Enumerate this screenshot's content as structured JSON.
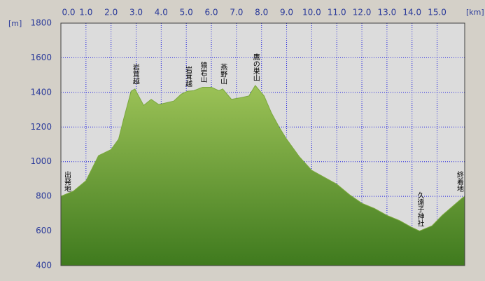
{
  "chart_data": {
    "type": "area",
    "x_label": "[km]",
    "y_label": "[m]",
    "x": [
      0,
      0.5,
      1.0,
      1.5,
      2.0,
      2.3,
      2.5,
      2.8,
      2.95,
      3.3,
      3.6,
      3.9,
      4.2,
      4.5,
      4.8,
      5.05,
      5.3,
      5.65,
      6.0,
      6.3,
      6.45,
      6.8,
      7.2,
      7.5,
      7.75,
      8.1,
      8.4,
      8.7,
      9.0,
      9.5,
      10.0,
      10.5,
      11.0,
      11.5,
      12.0,
      12.5,
      13.0,
      13.5,
      14.0,
      14.3,
      14.8,
      15.2,
      15.6,
      16.0,
      16.1
    ],
    "series": [
      {
        "color": "#7aa83c",
        "values": [
          800,
          830,
          890,
          1035,
          1070,
          1130,
          1245,
          1407,
          1420,
          1325,
          1360,
          1330,
          1340,
          1350,
          1390,
          1407,
          1410,
          1430,
          1430,
          1410,
          1420,
          1360,
          1370,
          1380,
          1440,
          1380,
          1280,
          1200,
          1130,
          1030,
          950,
          910,
          870,
          810,
          760,
          730,
          690,
          660,
          620,
          600,
          630,
          690,
          740,
          790,
          800
        ]
      }
    ],
    "annotations": [
      {
        "text": "出発地",
        "x": 0.1,
        "y": 800
      },
      {
        "text": "岩茸越",
        "x": 2.95,
        "y": 1420
      },
      {
        "text": "岩茸越",
        "x": 5.05,
        "y": 1407
      },
      {
        "text": "猿岩山",
        "x": 5.65,
        "y": 1430
      },
      {
        "text": "燕野山",
        "x": 6.45,
        "y": 1420
      },
      {
        "text": "鷹の巣山",
        "x": 7.75,
        "y": 1440
      },
      {
        "text": "久遠子神社",
        "x": 14.3,
        "y": 600
      },
      {
        "text": "終着地",
        "x": 16.0,
        "y": 800
      }
    ],
    "xlim": [
      0,
      16.1
    ],
    "ylim": [
      400,
      1800
    ],
    "xticks": [
      {
        "value": 0,
        "label": "0.0"
      },
      {
        "value": 1,
        "label": "1.0"
      },
      {
        "value": 2,
        "label": "2.0"
      },
      {
        "value": 3,
        "label": "3.0"
      },
      {
        "value": 4,
        "label": "4.0"
      },
      {
        "value": 5,
        "label": "5.0"
      },
      {
        "value": 6,
        "label": "6.0"
      },
      {
        "value": 7,
        "label": "7.0"
      },
      {
        "value": 8,
        "label": "8.0"
      },
      {
        "value": 9,
        "label": "9.0"
      },
      {
        "value": 10,
        "label": "10.0"
      },
      {
        "value": 11,
        "label": "11.0"
      },
      {
        "value": 12,
        "label": "12.0"
      },
      {
        "value": 13,
        "label": "13.0"
      },
      {
        "value": 14,
        "label": "14.0"
      },
      {
        "value": 15,
        "label": "15.0"
      }
    ],
    "yticks": [
      400,
      600,
      800,
      1000,
      1200,
      1400,
      1600,
      1800
    ],
    "grid": true
  }
}
